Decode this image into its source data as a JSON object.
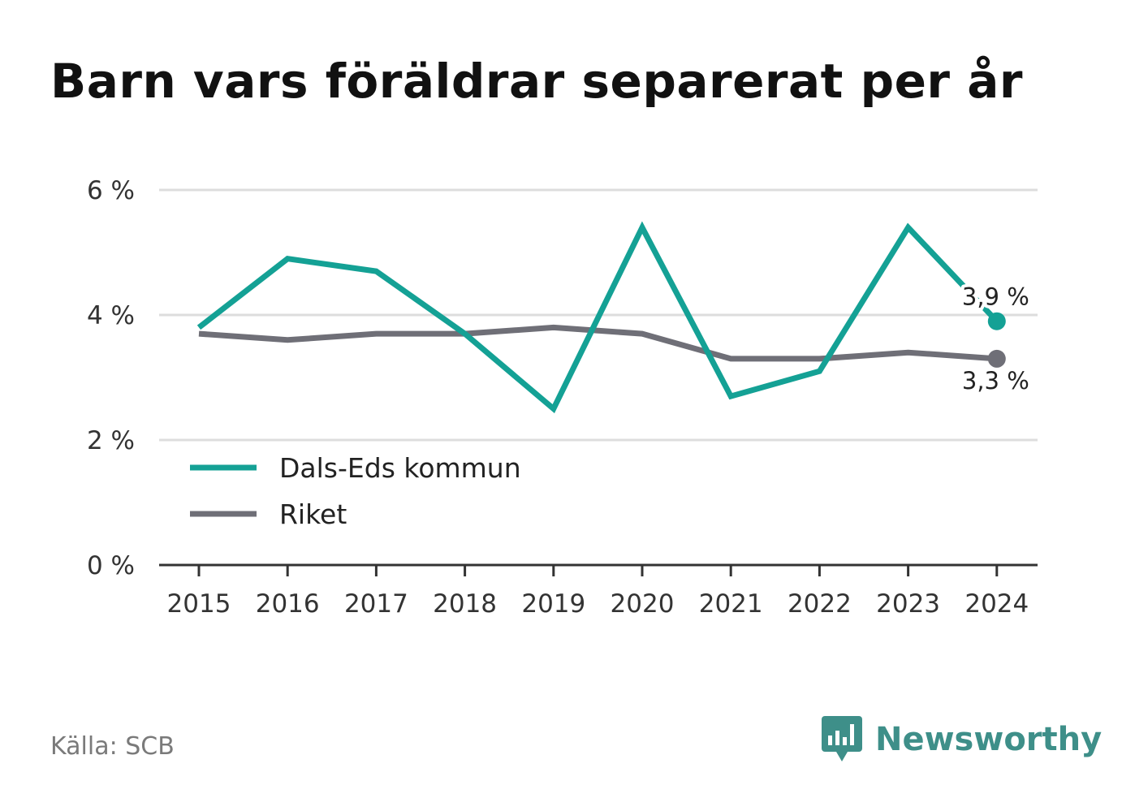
{
  "title": "Barn vars föräldrar separerat per år",
  "source": "Källa: SCB",
  "brand": {
    "name": "Newsworthy",
    "icon": "bar-chart-speech-bubble-icon"
  },
  "colors": {
    "dals_eds": "#14a195",
    "riket": "#6f6f77",
    "grid": "#dddddd",
    "axis": "#333333",
    "brand": "#3e8f89"
  },
  "chart_data": {
    "type": "line",
    "x": [
      "2015",
      "2016",
      "2017",
      "2018",
      "2019",
      "2020",
      "2021",
      "2022",
      "2023",
      "2024"
    ],
    "series": [
      {
        "name": "Dals-Eds kommun",
        "values": [
          3.8,
          4.9,
          4.7,
          3.7,
          2.5,
          5.4,
          2.7,
          3.1,
          5.4,
          3.9
        ],
        "end_label": "3,9 %"
      },
      {
        "name": "Riket",
        "values": [
          3.7,
          3.6,
          3.7,
          3.7,
          3.8,
          3.7,
          3.3,
          3.3,
          3.4,
          3.3
        ],
        "end_label": "3,3 %"
      }
    ],
    "ylim": [
      0,
      6
    ],
    "yticks": [
      0,
      2,
      4,
      6
    ],
    "ytick_labels": [
      "0 %",
      "2 %",
      "4 %",
      "6 %"
    ],
    "grid": true,
    "legend": "bottom-left"
  }
}
